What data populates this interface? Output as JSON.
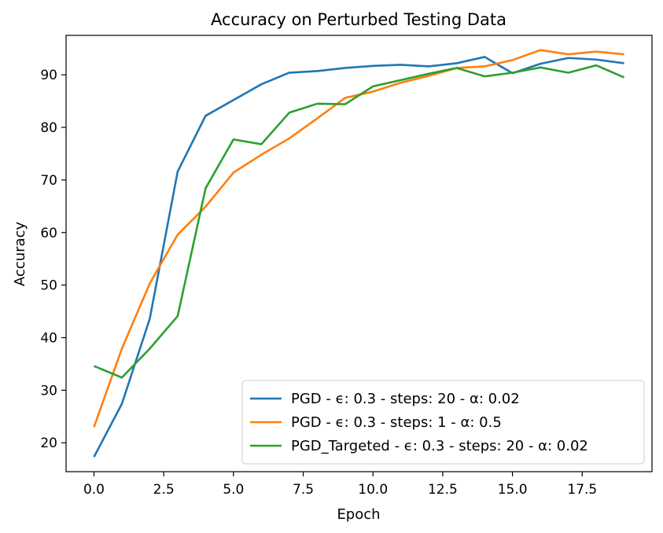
{
  "chart_data": {
    "type": "line",
    "title": "Accuracy on Perturbed Testing Data",
    "xlabel": "Epoch",
    "ylabel": "Accuracy",
    "xlim": [
      -1.0,
      20.0
    ],
    "ylim": [
      14.5,
      97.5
    ],
    "x_ticks": [
      0.0,
      2.5,
      5.0,
      7.5,
      10.0,
      12.5,
      15.0,
      17.5
    ],
    "x_tick_labels": [
      "0.0",
      "2.5",
      "5.0",
      "7.5",
      "10.0",
      "12.5",
      "15.0",
      "17.5"
    ],
    "y_ticks": [
      20,
      30,
      40,
      50,
      60,
      70,
      80,
      90
    ],
    "y_tick_labels": [
      "20",
      "30",
      "40",
      "50",
      "60",
      "70",
      "80",
      "90"
    ],
    "grid": false,
    "legend_position": "lower-right",
    "x": [
      0,
      1,
      2,
      3,
      4,
      5,
      6,
      7,
      8,
      9,
      10,
      11,
      12,
      13,
      14,
      15,
      16,
      17,
      18,
      19
    ],
    "series": [
      {
        "name": "PGD - ϵ: 0.3 - steps: 20 - α: 0.02",
        "color": "#1f77b4",
        "values": [
          17.3,
          27.4,
          43.6,
          71.6,
          82.2,
          85.2,
          88.2,
          90.4,
          90.7,
          91.3,
          91.7,
          91.9,
          91.6,
          92.2,
          93.4,
          90.3,
          92.1,
          93.2,
          92.9,
          92.2
        ]
      },
      {
        "name": "PGD - ϵ: 0.3 - steps: 1 - α: 0.5",
        "color": "#ff7f0e",
        "values": [
          23.0,
          37.9,
          50.3,
          59.6,
          64.9,
          71.4,
          74.8,
          77.9,
          81.7,
          85.6,
          86.8,
          88.5,
          89.8,
          91.3,
          91.6,
          92.8,
          94.7,
          93.9,
          94.4,
          93.9
        ]
      },
      {
        "name": "PGD_Targeted - ϵ: 0.3 - steps: 20 - α: 0.02",
        "color": "#2ca02c",
        "values": [
          34.6,
          32.4,
          37.9,
          44.1,
          68.4,
          77.7,
          76.8,
          82.8,
          84.5,
          84.4,
          87.8,
          89.0,
          90.2,
          91.3,
          89.7,
          90.4,
          91.4,
          90.4,
          91.8,
          89.5
        ]
      }
    ]
  }
}
